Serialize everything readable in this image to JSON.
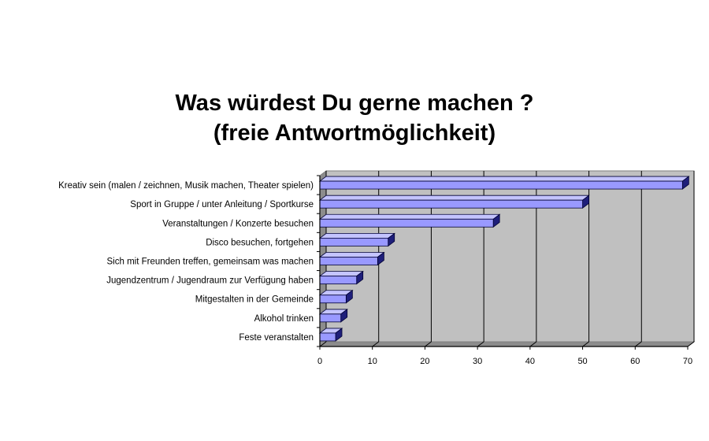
{
  "chart_data": {
    "type": "bar",
    "orientation": "horizontal",
    "title_lines": [
      "Was würdest Du gerne machen ?",
      "(freie Antwortmöglichkeit)"
    ],
    "categories": [
      "Kreativ sein (malen / zeichnen, Musik machen, Theater spielen)",
      "Sport in Gruppe / unter Anleitung / Sportkurse",
      "Veranstaltungen / Konzerte besuchen",
      "Disco besuchen, fortgehen",
      "Sich mit Freunden treffen, gemeinsam was machen",
      "Jugendzentrum / Jugendraum zur Verfügung haben",
      "Mitgestalten in der Gemeinde",
      "Alkohol trinken",
      "Feste veranstalten"
    ],
    "values": [
      69,
      50,
      33,
      13,
      11,
      7,
      5,
      4,
      3
    ],
    "xlim": [
      0,
      70
    ],
    "xticks": [
      "0",
      "10",
      "20",
      "30",
      "40",
      "50",
      "60",
      "70"
    ],
    "grid": true,
    "legend": "none",
    "colors": {
      "bar_front": "#9999ff",
      "bar_top": "#c4c4ff",
      "bar_side": "#1e1e7a",
      "bar_outline": "#000033",
      "plot_back": "#c0c0c0",
      "plot_floor": "#8c8c8c",
      "grid": "#000000"
    }
  }
}
